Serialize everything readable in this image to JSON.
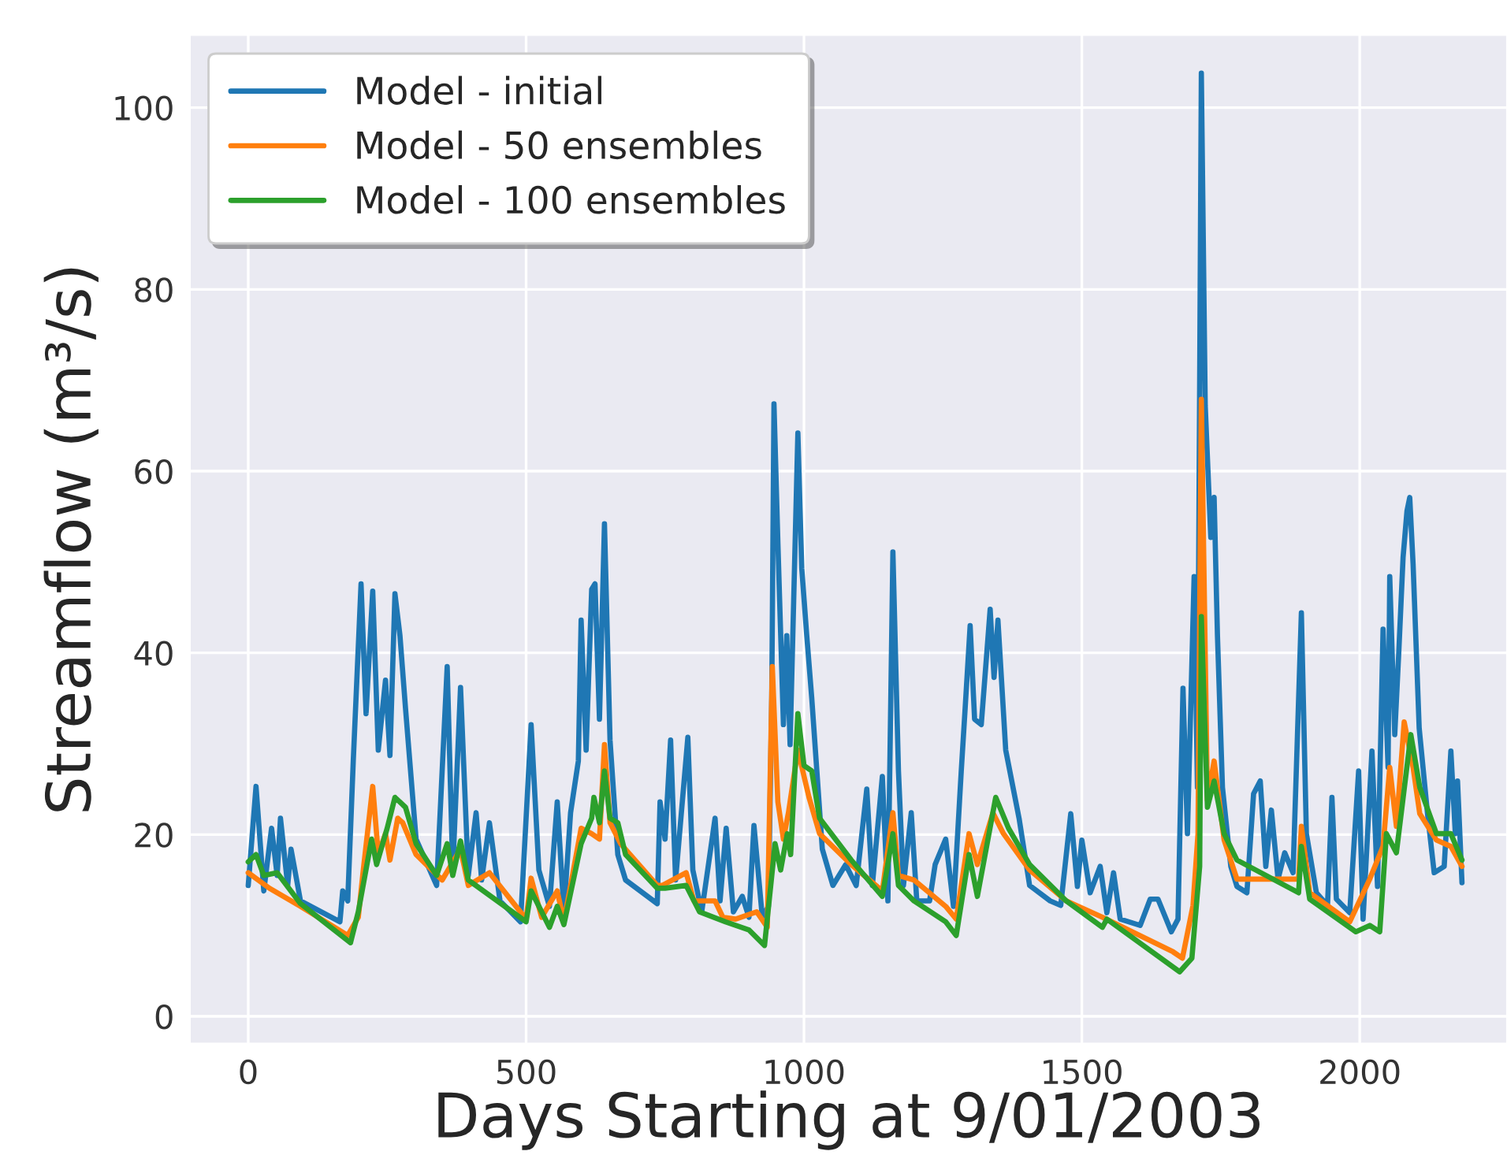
{
  "chart_data": {
    "type": "line",
    "xlabel": "Days Starting at 9/01/2003",
    "ylabel": "Streamflow (m³/s)",
    "xlim": [
      -105,
      2265
    ],
    "ylim": [
      -3,
      108
    ],
    "xticks": [
      0,
      500,
      1000,
      1500,
      2000
    ],
    "yticks": [
      0,
      20,
      40,
      60,
      80,
      100
    ],
    "grid": true,
    "legend": "top left",
    "line_style": "solid",
    "marker": "none",
    "series": [
      {
        "name": "Model - initial",
        "color": "#1f77b4",
        "x": [
          0,
          14,
          28,
          42,
          52,
          58,
          71,
          77,
          94,
          165,
          170,
          179,
          189,
          203,
          212,
          224,
          234,
          247,
          255,
          264,
          273,
          283,
          302,
          339,
          358,
          368,
          382,
          396,
          410,
          420,
          434,
          453,
          490,
          509,
          523,
          542,
          556,
          568,
          580,
          594,
          599,
          608,
          618,
          624,
          632,
          641,
          651,
          665,
          679,
          736,
          741,
          750,
          760,
          769,
          791,
          800,
          816,
          840,
          849,
          860,
          873,
          889,
          901,
          910,
          925,
          936,
          942,
          946,
          953,
          963,
          969,
          975,
          989,
          996,
          1005,
          1014,
          1033,
          1052,
          1075,
          1094,
          1113,
          1123,
          1141,
          1151,
          1160,
          1170,
          1179,
          1193,
          1203,
          1226,
          1236,
          1255,
          1269,
          1283,
          1290,
          1299,
          1307,
          1319,
          1335,
          1342,
          1349,
          1363,
          1387,
          1406,
          1443,
          1462,
          1480,
          1492,
          1500,
          1515,
          1533,
          1545,
          1557,
          1569,
          1605,
          1623,
          1637,
          1661,
          1673,
          1682,
          1690,
          1702,
          1708,
          1715,
          1722,
          1732,
          1738,
          1744,
          1753,
          1768,
          1779,
          1797,
          1809,
          1821,
          1831,
          1841,
          1853,
          1865,
          1880,
          1895,
          1904,
          1922,
          1942,
          1950,
          1958,
          1982,
          1998,
          2006,
          2022,
          2032,
          2042,
          2051,
          2054,
          2063,
          2070,
          2078,
          2085,
          2090,
          2096,
          2107,
          2122,
          2134,
          2152,
          2164,
          2172,
          2176,
          2184
        ],
        "values": [
          14.4,
          25.3,
          13.8,
          20.7,
          15.5,
          21.8,
          14.4,
          18.4,
          12.7,
          10.4,
          13.8,
          12.7,
          28.1,
          47.6,
          33.3,
          46.8,
          29.3,
          37.0,
          28.7,
          46.5,
          41.9,
          33.9,
          19.5,
          14.4,
          38.5,
          16.1,
          36.2,
          15.5,
          22.4,
          15.0,
          21.3,
          12.7,
          10.4,
          32.1,
          16.1,
          12.1,
          23.6,
          11.5,
          22.4,
          28.1,
          43.6,
          29.3,
          47.0,
          47.6,
          32.7,
          54.2,
          30.4,
          17.8,
          15.0,
          12.4,
          23.6,
          19.5,
          30.4,
          15.0,
          30.7,
          16.1,
          11.5,
          21.8,
          12.7,
          20.7,
          11.5,
          13.2,
          10.9,
          21.0,
          10.9,
          12.1,
          35.0,
          67.4,
          52.2,
          32.1,
          41.9,
          29.9,
          64.2,
          49.3,
          41.9,
          35.0,
          18.4,
          14.4,
          16.7,
          14.4,
          25.0,
          14.4,
          26.4,
          12.7,
          51.1,
          27.0,
          14.4,
          22.4,
          12.7,
          12.7,
          16.7,
          19.5,
          12.1,
          27.0,
          33.9,
          43.0,
          32.7,
          32.1,
          44.8,
          37.3,
          43.6,
          29.3,
          21.8,
          14.4,
          12.7,
          12.2,
          22.3,
          14.3,
          19.4,
          13.6,
          16.5,
          11.4,
          15.8,
          10.7,
          10.0,
          12.9,
          12.9,
          9.3,
          10.7,
          36.1,
          20.1,
          48.4,
          25.2,
          103.8,
          67.2,
          52.7,
          57.1,
          41.9,
          25.2,
          16.5,
          14.3,
          13.6,
          24.5,
          25.9,
          16.5,
          22.7,
          15.1,
          18.0,
          15.8,
          44.4,
          20.1,
          13.6,
          12.2,
          24.1,
          12.9,
          11.4,
          27.0,
          10.7,
          29.2,
          14.3,
          42.6,
          27.4,
          48.4,
          31.0,
          39.7,
          50.5,
          55.6,
          57.1,
          49.8,
          31.7,
          22.3,
          15.8,
          16.5,
          29.2,
          20.1,
          25.9,
          14.7
        ]
      },
      {
        "name": "Model - 50 ensembles",
        "color": "#ff7f0e",
        "x": [
          0,
          38,
          94,
          179,
          198,
          207,
          224,
          234,
          247,
          255,
          269,
          278,
          302,
          349,
          382,
          396,
          434,
          500,
          509,
          528,
          556,
          568,
          599,
          618,
          632,
          641,
          651,
          670,
          736,
          745,
          788,
          802,
          840,
          854,
          877,
          915,
          934,
          943,
          953,
          963,
          972,
          989,
          1009,
          1028,
          1085,
          1141,
          1160,
          1170,
          1198,
          1255,
          1274,
          1297,
          1312,
          1340,
          1359,
          1406,
          1472,
          1537,
          1664,
          1681,
          1700,
          1709,
          1715,
          1726,
          1738,
          1756,
          1779,
          1890,
          1895,
          1910,
          1982,
          2018,
          2042,
          2054,
          2066,
          2080,
          2096,
          2108,
          2138,
          2164,
          2184
        ],
        "values": [
          15.8,
          14.1,
          12.1,
          8.9,
          10.9,
          16.1,
          25.3,
          17.8,
          20.1,
          17.2,
          21.8,
          21.3,
          17.8,
          15.0,
          18.4,
          14.4,
          15.8,
          10.7,
          15.2,
          10.9,
          13.8,
          10.4,
          20.7,
          20.1,
          19.5,
          29.9,
          21.3,
          19.0,
          14.4,
          14.4,
          15.8,
          12.7,
          12.7,
          10.9,
          10.7,
          11.5,
          9.8,
          38.5,
          23.6,
          19.5,
          22.4,
          29.3,
          24.1,
          20.1,
          16.7,
          13.8,
          22.4,
          15.5,
          15.0,
          12.1,
          10.7,
          20.1,
          16.7,
          22.4,
          20.1,
          16.1,
          12.7,
          10.9,
          7.1,
          6.4,
          12.2,
          20.1,
          67.9,
          23.8,
          28.1,
          19.4,
          15.1,
          15.1,
          20.9,
          13.6,
          10.4,
          15.1,
          18.7,
          27.4,
          20.9,
          32.4,
          27.4,
          22.3,
          19.4,
          18.7,
          16.5
        ]
      },
      {
        "name": "Model - 100 ensembles",
        "color": "#2ca02c",
        "x": [
          0,
          14,
          28,
          52,
          94,
          184,
          198,
          222,
          231,
          250,
          264,
          283,
          302,
          339,
          358,
          368,
          382,
          396,
          500,
          509,
          542,
          556,
          568,
          599,
          618,
          622,
          632,
          641,
          651,
          665,
          679,
          736,
          750,
          788,
          812,
          859,
          901,
          929,
          948,
          958,
          970,
          976,
          989,
          1000,
          1014,
          1028,
          1085,
          1141,
          1160,
          1170,
          1198,
          1255,
          1274,
          1297,
          1312,
          1345,
          1368,
          1406,
          1472,
          1537,
          1545,
          1676,
          1698,
          1712,
          1715,
          1726,
          1738,
          1756,
          1779,
          1890,
          1895,
          1910,
          1993,
          2018,
          2036,
          2048,
          2066,
          2092,
          2108,
          2138,
          2164,
          2184
        ],
        "values": [
          17.0,
          17.8,
          15.5,
          15.8,
          12.4,
          8.1,
          11.5,
          19.5,
          16.7,
          20.7,
          24.1,
          23.0,
          19.0,
          15.5,
          19.0,
          15.5,
          19.3,
          15.0,
          10.4,
          13.8,
          9.8,
          12.1,
          10.1,
          19.0,
          21.8,
          24.1,
          21.3,
          27.0,
          21.8,
          21.3,
          17.8,
          14.1,
          14.1,
          14.4,
          11.5,
          10.4,
          9.5,
          7.8,
          19.0,
          16.1,
          20.1,
          17.8,
          33.3,
          27.6,
          27.0,
          21.8,
          17.2,
          13.2,
          20.1,
          14.4,
          12.7,
          10.4,
          8.9,
          17.8,
          13.2,
          24.1,
          20.7,
          16.7,
          12.7,
          9.8,
          10.7,
          4.9,
          6.4,
          16.5,
          44.0,
          23.0,
          25.9,
          20.1,
          17.2,
          13.6,
          18.7,
          12.9,
          9.3,
          10.0,
          9.3,
          20.1,
          18.0,
          31.0,
          25.2,
          20.1,
          20.1,
          17.2
        ]
      }
    ]
  }
}
